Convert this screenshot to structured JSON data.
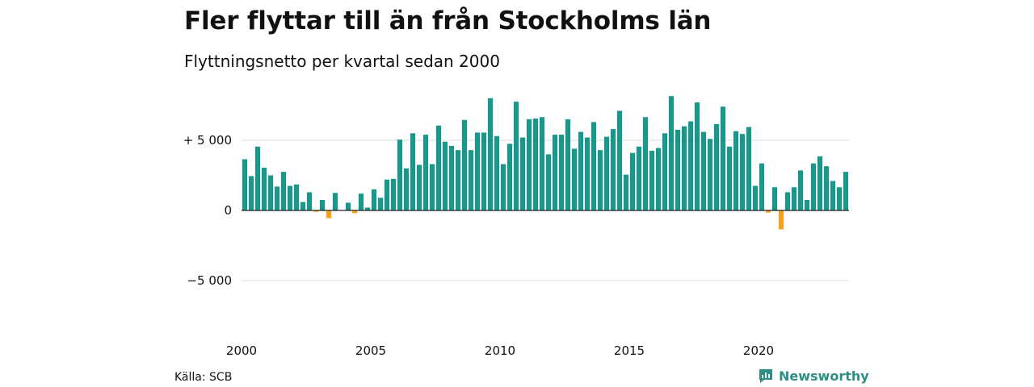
{
  "title": "Fler flyttar till än från Stockholms län",
  "subtitle": "Flyttningsnetto per kvartal sedan 2000",
  "source": "Källa: SCB",
  "logo": {
    "text": "Newsworthy",
    "icon": "newsworthy-logo-icon"
  },
  "colors": {
    "positive": "#1a968a",
    "negative": "#f5a01e",
    "grid": "#dddddd",
    "zero_line": "#222222",
    "brand": "#2b8f85"
  },
  "chart_data": {
    "type": "bar",
    "title": "Fler flyttar till än från Stockholms län",
    "subtitle": "Flyttningsnetto per kvartal sedan 2000",
    "xlabel": "",
    "ylabel": "",
    "x_start": "2000 Q1",
    "x_ticks": [
      2000,
      2005,
      2010,
      2015,
      2020
    ],
    "y_ticks": [
      {
        "value": 5000,
        "label": "+ 5 000"
      },
      {
        "value": 0,
        "label": "0"
      },
      {
        "value": -5000,
        "label": "−5 000"
      }
    ],
    "ylim": [
      -8500,
      8500
    ],
    "grid": true,
    "values": [
      3650,
      2450,
      4550,
      3050,
      2500,
      1700,
      2750,
      1750,
      1850,
      600,
      1300,
      -100,
      750,
      -550,
      1250,
      0,
      550,
      -200,
      1200,
      200,
      1500,
      900,
      2200,
      2250,
      5050,
      3000,
      5500,
      3250,
      5400,
      3300,
      6050,
      4900,
      4600,
      4300,
      6450,
      4300,
      5550,
      5550,
      8000,
      5300,
      3300,
      4750,
      7750,
      5200,
      6500,
      6550,
      6650,
      4000,
      5400,
      5400,
      6500,
      4400,
      5600,
      5200,
      6300,
      4300,
      5250,
      5800,
      7100,
      2550,
      4100,
      4550,
      6650,
      4250,
      4450,
      5500,
      8150,
      5750,
      6000,
      6350,
      7700,
      5600,
      5100,
      6150,
      7400,
      4550,
      5650,
      5450,
      5950,
      1750,
      3350,
      -150,
      1650,
      -1350,
      1300,
      1650,
      2850,
      750,
      3350,
      3850,
      3150,
      2100,
      1650,
      2750
    ]
  }
}
